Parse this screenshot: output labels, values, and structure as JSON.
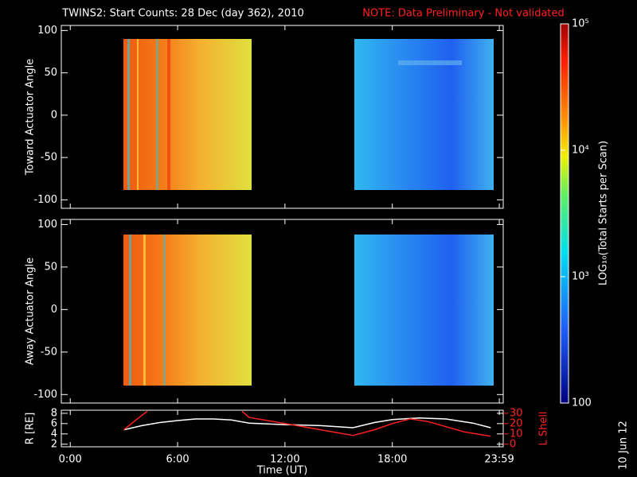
{
  "chart_data": [
    {
      "type": "heatmap",
      "title": "TWINS2: Start Counts: 28 Dec (day 362), 2010",
      "note": "NOTE: Data Preliminary - Not validated",
      "note_color": "#ff2020",
      "ylabel": "Toward Actuator Angle",
      "ylim": [
        -110,
        106
      ],
      "yticks": [
        -100,
        -50,
        0,
        50,
        100
      ]
    },
    {
      "type": "heatmap",
      "ylabel": "Away Actuator Angle",
      "ylim": [
        -110,
        106
      ],
      "yticks": [
        -100,
        -50,
        0,
        50,
        100
      ]
    },
    {
      "type": "line",
      "xlabel": "Time (UT)",
      "ylabel": "R [RE]",
      "y2label": "L Shell",
      "y2color": "#ff2020",
      "xlim": [
        -0.5,
        24.2
      ],
      "xticks": [
        {
          "value": 0,
          "label": "0:00"
        },
        {
          "value": 6,
          "label": "6:00"
        },
        {
          "value": 12,
          "label": "12:00"
        },
        {
          "value": 18,
          "label": "18:00"
        },
        {
          "value": 23.98,
          "label": "23:59"
        }
      ],
      "ylim": [
        1.5,
        8.6
      ],
      "yticks": [
        2,
        4,
        6,
        8
      ],
      "y2lim": [
        -2.5,
        33
      ],
      "y2ticks": [
        0,
        10,
        20,
        30
      ],
      "series": [
        {
          "color": "#ffffff",
          "x": [
            3,
            4,
            5,
            6,
            7,
            8,
            9,
            10,
            12,
            14,
            15.8,
            17,
            18,
            19.5,
            21,
            22.5,
            23.5
          ],
          "values": [
            4.8,
            5.6,
            6.2,
            6.6,
            6.9,
            6.9,
            6.7,
            6.1,
            5.8,
            5.6,
            5.2,
            6.2,
            6.8,
            7.1,
            6.9,
            6.1,
            5.2
          ]
        },
        {
          "color": "#ff2020",
          "axis": "y2",
          "x": [
            3,
            3.7,
            4.3,
            7,
            9.6,
            10,
            12,
            14,
            15.8,
            17,
            18,
            19,
            20,
            21,
            22,
            23.5
          ],
          "values": [
            14,
            24,
            32,
            null,
            32,
            26,
            20,
            14,
            8.5,
            14,
            20,
            24.6,
            22,
            17,
            12,
            7.7
          ]
        }
      ]
    },
    {
      "type": "colorbar",
      "label": "LOG₁₀(Total Starts per Scan)",
      "log": true,
      "lim": [
        100,
        100000
      ],
      "ticks": [
        {
          "value": 100000,
          "label": "10⁵"
        },
        {
          "value": 10000,
          "label": "10⁴"
        },
        {
          "value": 1000,
          "label": "10³"
        },
        100
      ]
    }
  ],
  "footer": "10 Jun 12"
}
